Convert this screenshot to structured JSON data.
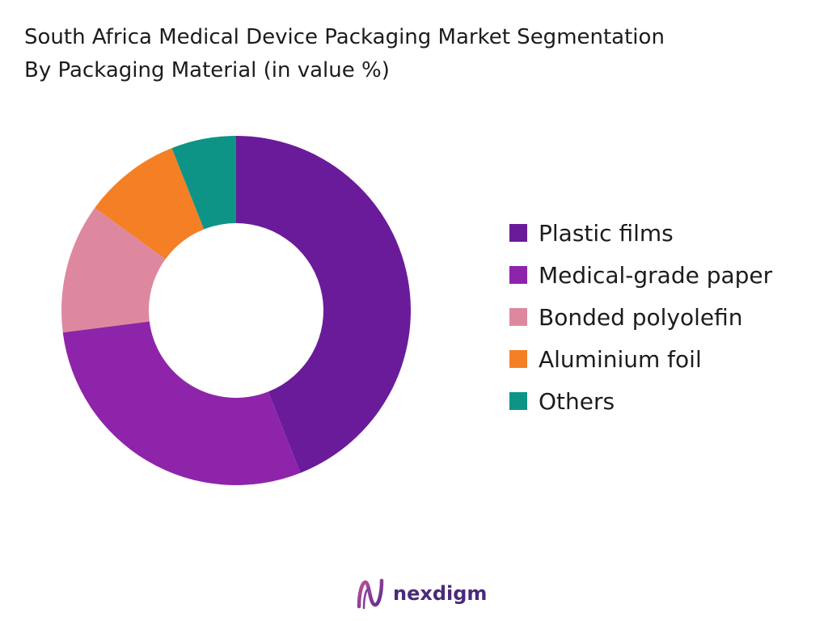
{
  "chart_data": {
    "type": "pie",
    "variant": "donut",
    "title_lines": [
      "South Africa Medical Device Packaging Market Segmentation",
      "By Packaging Material (in value %)"
    ],
    "categories": [
      "Plastic films",
      "Medical-grade paper",
      "Bonded polyolefin",
      "Aluminium foil",
      "Others"
    ],
    "values": [
      44,
      29,
      12,
      9,
      6
    ],
    "colors": [
      "#6a1b9a",
      "#8e24aa",
      "#de889f",
      "#f57f25",
      "#0e9486"
    ],
    "legend_position": "right",
    "start_angle": "top",
    "direction": "clockwise"
  },
  "brand": {
    "name": "nexdigm",
    "color": "#4a2a7a",
    "icon": "nexdigm-logo-icon"
  }
}
